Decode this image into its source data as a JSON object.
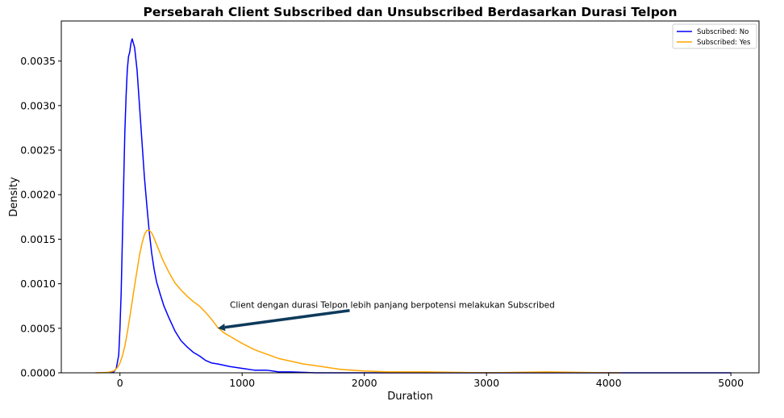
{
  "chart_data": {
    "type": "line",
    "title": "Persebarah Client Subscribed dan Unsubscribed Berdasarkan Durasi Telpon",
    "xlabel": "Duration",
    "ylabel": "Density",
    "xlim": [
      -480,
      5230
    ],
    "ylim": [
      0,
      0.00395
    ],
    "xticks": [
      0,
      1000,
      2000,
      3000,
      4000,
      5000
    ],
    "xtick_labels": [
      "0",
      "1000",
      "2000",
      "3000",
      "4000",
      "5000"
    ],
    "yticks": [
      0,
      0.0005,
      0.001,
      0.0015,
      0.002,
      0.0025,
      0.003,
      0.0035
    ],
    "ytick_labels": [
      "0.0000",
      "0.0005",
      "0.0010",
      "0.0015",
      "0.0020",
      "0.0025",
      "0.0030",
      "0.0035"
    ],
    "grid": false,
    "legend_position": "top-right",
    "series": [
      {
        "name": "Subscribed: No",
        "color": "#0000ff",
        "x": [
          -80,
          -50,
          -30,
          -10,
          0,
          10,
          20,
          30,
          40,
          50,
          60,
          70,
          80,
          90,
          100,
          110,
          120,
          140,
          160,
          180,
          200,
          220,
          240,
          260,
          280,
          300,
          330,
          360,
          400,
          450,
          500,
          550,
          600,
          650,
          700,
          750,
          800,
          900,
          1000,
          1100,
          1200,
          1300,
          1400,
          1600,
          1800,
          2000,
          2500,
          3000,
          3500,
          4000,
          4500,
          5000
        ],
        "y": [
          0.0,
          1e-05,
          5e-05,
          0.0002,
          0.0005,
          0.0009,
          0.0015,
          0.0021,
          0.0027,
          0.0031,
          0.0034,
          0.00355,
          0.0036,
          0.0037,
          0.00375,
          0.0037,
          0.00365,
          0.0034,
          0.003,
          0.0026,
          0.0022,
          0.00188,
          0.00158,
          0.00134,
          0.00116,
          0.00102,
          0.00088,
          0.00075,
          0.00062,
          0.00047,
          0.00036,
          0.00029,
          0.00023,
          0.00019,
          0.00014,
          0.00011,
          0.0001,
          7e-05,
          5e-05,
          3e-05,
          3e-05,
          1e-05,
          1e-05,
          0.0,
          0.0,
          0.0,
          0.0,
          0.0,
          0.0,
          0.0,
          0.0,
          0.0
        ]
      },
      {
        "name": "Subscribed: Yes",
        "color": "#ffa500",
        "x": [
          -200,
          -100,
          -50,
          -20,
          0,
          20,
          40,
          60,
          80,
          100,
          120,
          140,
          160,
          180,
          200,
          220,
          240,
          260,
          280,
          300,
          350,
          400,
          450,
          500,
          550,
          600,
          650,
          700,
          750,
          800,
          850,
          900,
          1000,
          1100,
          1200,
          1300,
          1400,
          1500,
          1600,
          1700,
          1800,
          1900,
          2000,
          2200,
          2500,
          3000,
          3500,
          4000,
          4100
        ],
        "y": [
          0.0,
          5e-06,
          2e-05,
          6e-05,
          0.00011,
          0.00019,
          0.0003,
          0.00045,
          0.00062,
          0.0008,
          0.00098,
          0.00115,
          0.00132,
          0.00145,
          0.00155,
          0.0016,
          0.0016,
          0.00157,
          0.00151,
          0.00144,
          0.00127,
          0.00113,
          0.00101,
          0.00093,
          0.00086,
          0.0008,
          0.00075,
          0.00068,
          0.0006,
          0.00051,
          0.00045,
          0.00041,
          0.00033,
          0.00026,
          0.00021,
          0.00016,
          0.00013,
          0.0001,
          8e-05,
          6e-05,
          4e-05,
          3e-05,
          2e-05,
          1e-05,
          1e-05,
          0.0,
          1e-05,
          0.0,
          0.0
        ]
      }
    ],
    "annotation": {
      "text": "Client dengan durasi Telpon lebih panjang berpotensi melakukan Subscribed",
      "text_position": [
        900,
        0.00073
      ],
      "arrow_from": [
        1880,
        0.0007
      ],
      "arrow_to": [
        800,
        0.0005
      ],
      "arrow_color": "#0e3a5c"
    }
  }
}
